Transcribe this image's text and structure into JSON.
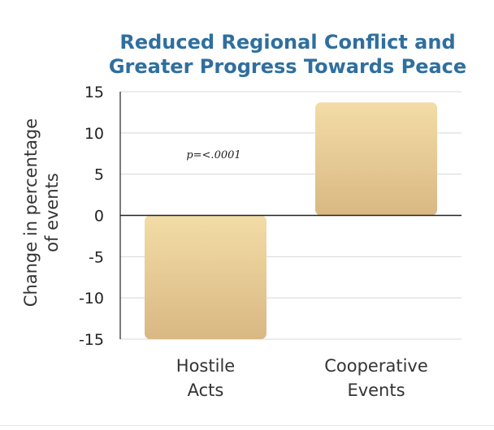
{
  "chart_data": {
    "type": "bar",
    "title_lines": [
      "Reduced Regional Conflict and",
      "Greater Progress Towards Peace"
    ],
    "ylabel_lines": [
      "Change in percentage",
      "of events"
    ],
    "xlabel": "",
    "categories": [
      {
        "lines": [
          "Hostile",
          "Acts"
        ],
        "value": -15
      },
      {
        "lines": [
          "Cooperative",
          "Events"
        ],
        "value": 13.7
      }
    ],
    "values": [
      -15,
      13.7
    ],
    "ylim": [
      -15,
      15
    ],
    "yticks": [
      15,
      10,
      5,
      0,
      -5,
      -10,
      -15
    ],
    "grid": true,
    "annotation": "p=<.0001",
    "colors": {
      "title": "#2f6f9f",
      "bar_top": "#f3dca6",
      "bar_bottom": "#d9b883",
      "grid": "#d8d8d8",
      "zero_line": "#222222",
      "axis": "#222222"
    }
  }
}
